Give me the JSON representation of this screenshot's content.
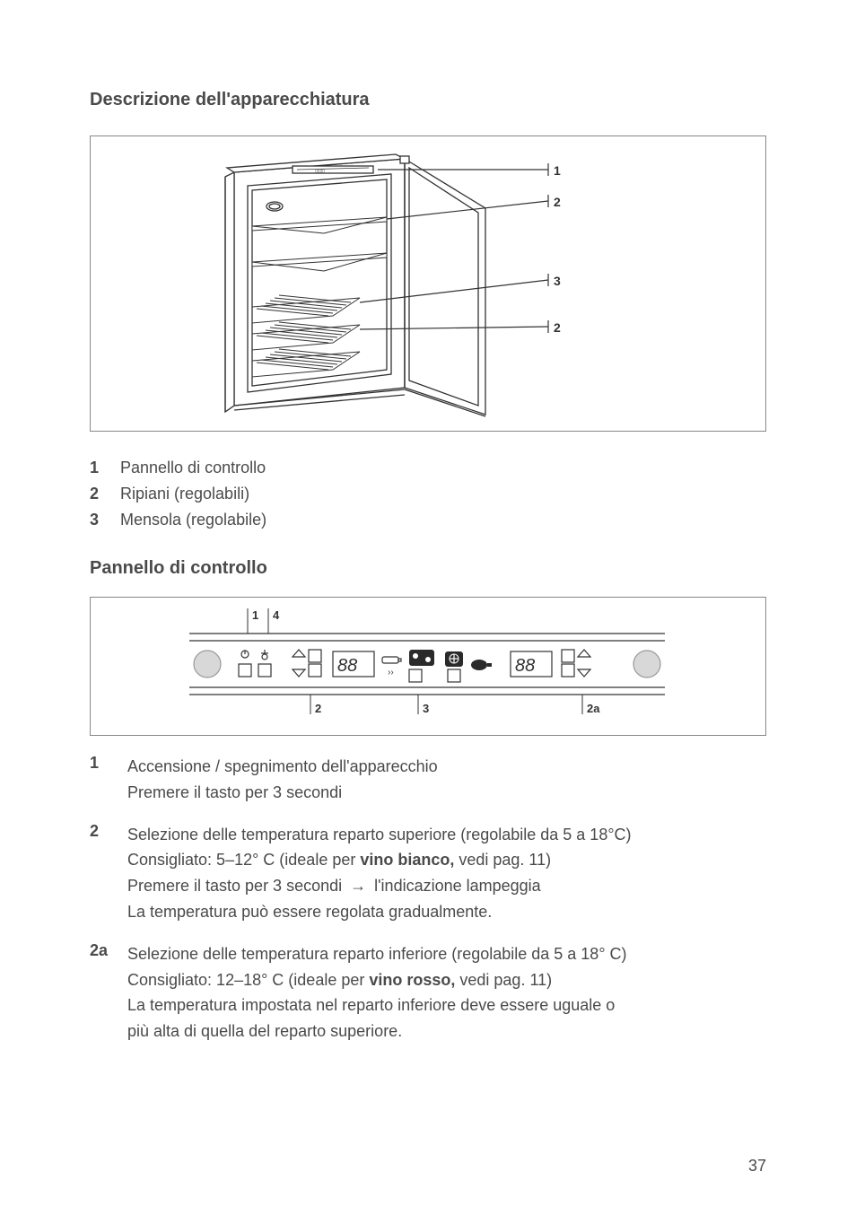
{
  "headings": {
    "title1": "Descrizione dell'apparecchiatura",
    "title2": "Pannello di controllo"
  },
  "figure1_labels": {
    "l1": "1",
    "l2": "2",
    "l3": "3",
    "l4": "2"
  },
  "legend1": [
    {
      "num": "1",
      "text": "Pannello di controllo"
    },
    {
      "num": "2",
      "text": "Ripiani (regolabili)"
    },
    {
      "num": "3",
      "text": "Mensola (regolabile)"
    }
  ],
  "figure2_labels": {
    "l1": "1",
    "l4": "4",
    "l2": "2",
    "l3": "3",
    "l2a": "2a"
  },
  "descriptions": [
    {
      "num": "1",
      "lines": [
        "Accensione / spegnimento dell'apparecchio",
        "Premere il tasto per 3 secondi"
      ]
    },
    {
      "num": "2",
      "lines": [
        "Selezione delle temperatura reparto superiore (regolabile da 5 a 18°C)",
        "Consigliato: 5–12° C (ideale per <b>vino bianco,</b> vedi pag. 11)",
        "Premere il tasto per 3 secondi <span class='arrow'>→</span> l'indicazione lampeggia",
        "La temperatura può essere regolata gradualmente."
      ]
    },
    {
      "num": "2a",
      "lines": [
        "Selezione delle temperatura reparto inferiore (regolabile da 5 a 18° C)",
        "Consigliato: 12–18° C (ideale per <b>vino rosso,</b> vedi pag. 11)",
        "La temperatura impostata nel reparto inferiore deve essere uguale o",
        "più alta di quella del reparto superiore."
      ]
    }
  ],
  "page_number": "37",
  "colors": {
    "text": "#4a4a4a",
    "border": "#888888",
    "line_dark": "#333333",
    "panel_dark": "#2a2a2a",
    "background": "#ffffff"
  }
}
